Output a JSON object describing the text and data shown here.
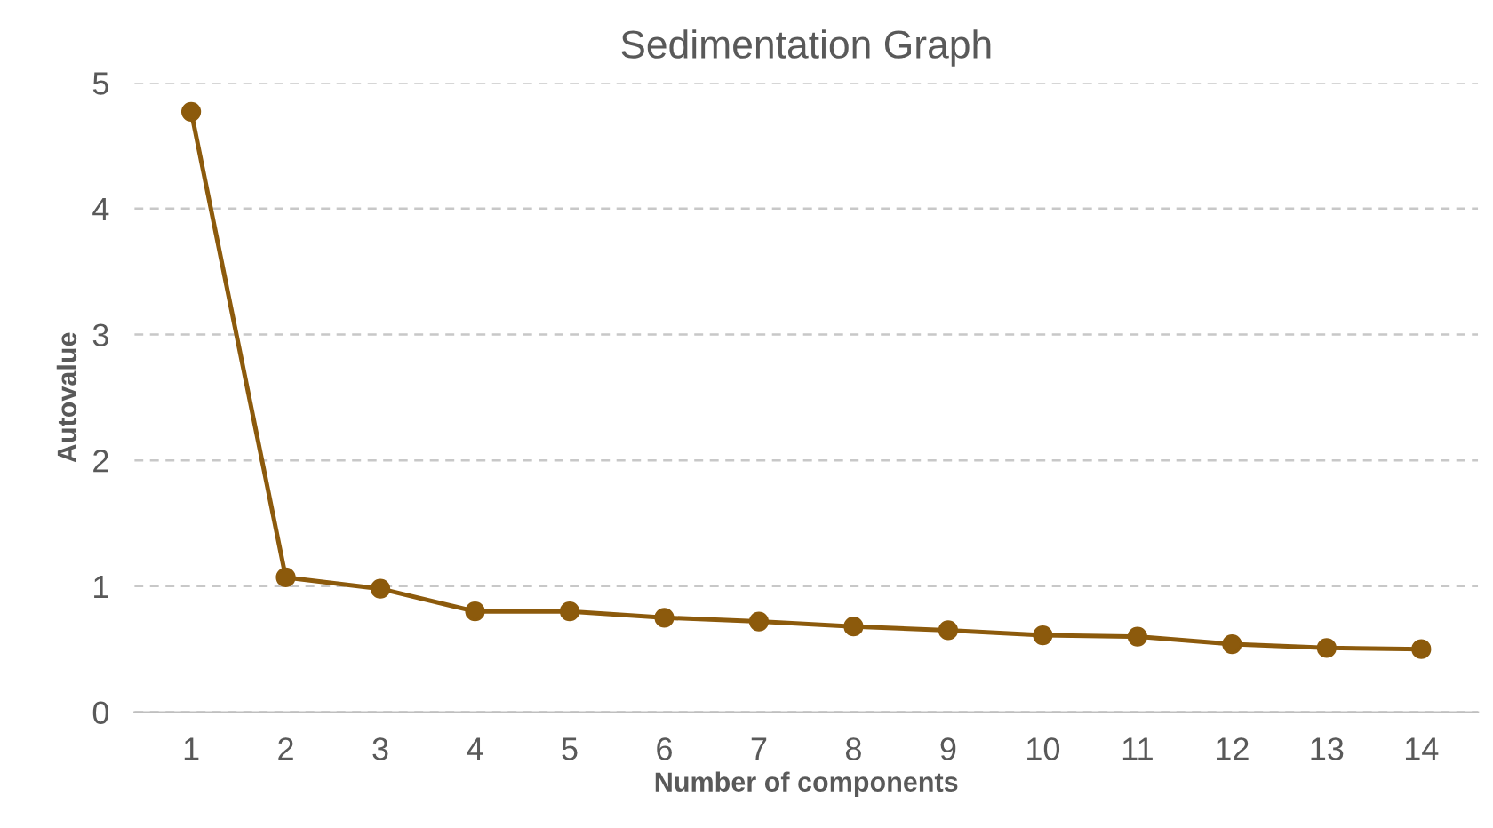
{
  "chart_data": {
    "type": "line",
    "title": "Sedimentation Graph",
    "xlabel": "Number of components",
    "ylabel": "Autovalue",
    "categories": [
      "1",
      "2",
      "3",
      "4",
      "5",
      "6",
      "7",
      "8",
      "9",
      "10",
      "11",
      "12",
      "13",
      "14"
    ],
    "series": [
      {
        "color": "#8c5a0c",
        "values": [
          4.77,
          1.07,
          0.98,
          0.8,
          0.8,
          0.75,
          0.72,
          0.68,
          0.65,
          0.61,
          0.6,
          0.54,
          0.51,
          0.5
        ]
      }
    ],
    "ylim": [
      0,
      5
    ],
    "yticks": [
      0,
      1,
      2,
      3,
      4,
      5
    ],
    "grid": "y",
    "marker": "circle",
    "line_style": "solid"
  }
}
